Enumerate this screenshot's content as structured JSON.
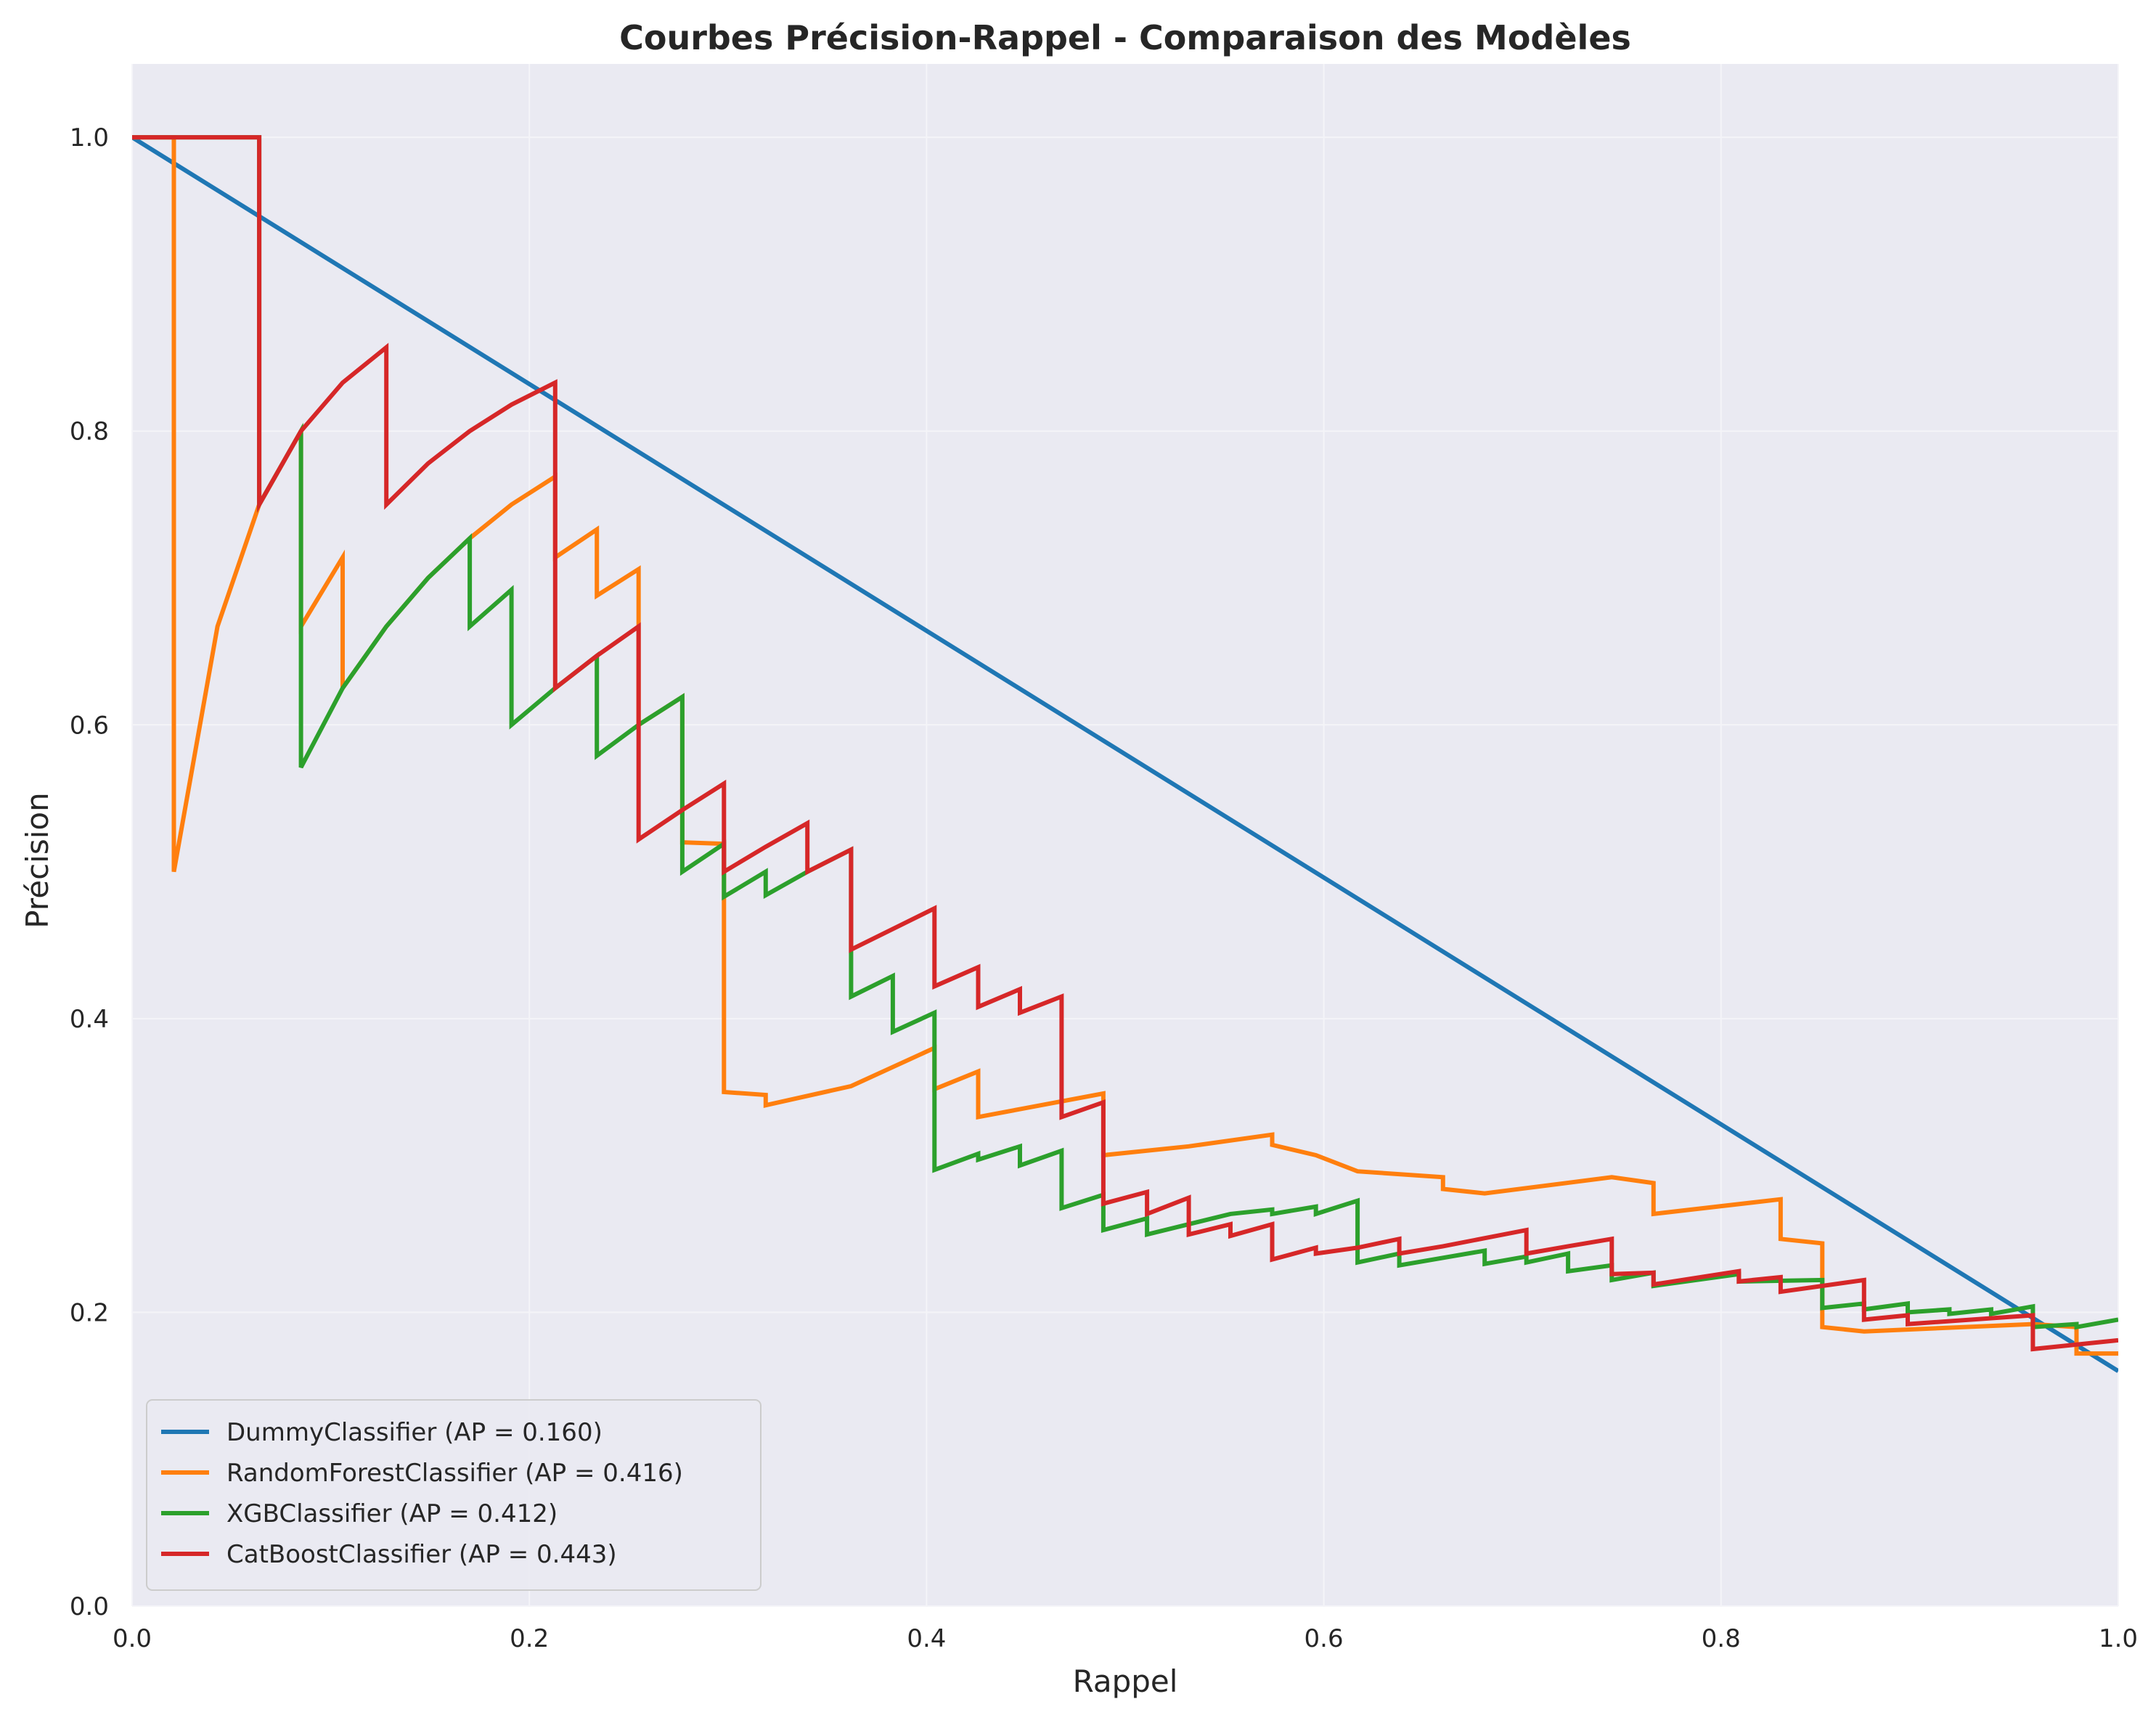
{
  "chart_data": {
    "type": "line",
    "title": "Courbes Précision-Rappel - Comparaison des Modèles",
    "xlabel": "Rappel",
    "ylabel": "Précision",
    "xlim": [
      0,
      1
    ],
    "ylim": [
      0,
      1.05
    ],
    "xticks": [
      0.0,
      0.2,
      0.4,
      0.6,
      0.8,
      1.0
    ],
    "xtick_labels": [
      "0.0",
      "0.2",
      "0.4",
      "0.6",
      "0.8",
      "1.0"
    ],
    "yticks": [
      0.0,
      0.2,
      0.4,
      0.6,
      0.8,
      1.0
    ],
    "ytick_labels": [
      "0.0",
      "0.2",
      "0.4",
      "0.6",
      "0.8",
      "1.0"
    ],
    "grid": true,
    "legend_position": "lower-left",
    "background": "#eaeaf2",
    "series": [
      {
        "name": "DummyClassifier (AP = 0.160)",
        "color": "#1f77b4",
        "points": [
          [
            0.0,
            1.0
          ],
          [
            1.0,
            0.16
          ]
        ]
      },
      {
        "name": "RandomForestClassifier (AP = 0.416)",
        "color": "#ff7f0e",
        "points": [
          [
            0.0,
            1.0
          ],
          [
            0.021,
            1.0
          ],
          [
            0.021,
            0.5
          ],
          [
            0.043,
            0.667
          ],
          [
            0.064,
            0.75
          ],
          [
            0.085,
            0.8
          ],
          [
            0.085,
            0.667
          ],
          [
            0.106,
            0.714
          ],
          [
            0.106,
            0.625
          ],
          [
            0.128,
            0.667
          ],
          [
            0.149,
            0.7
          ],
          [
            0.17,
            0.727
          ],
          [
            0.191,
            0.75
          ],
          [
            0.213,
            0.769
          ],
          [
            0.213,
            0.714
          ],
          [
            0.234,
            0.733
          ],
          [
            0.234,
            0.688
          ],
          [
            0.255,
            0.706
          ],
          [
            0.255,
            0.6
          ],
          [
            0.277,
            0.619
          ],
          [
            0.277,
            0.52
          ],
          [
            0.298,
            0.519
          ],
          [
            0.298,
            0.35
          ],
          [
            0.319,
            0.348
          ],
          [
            0.319,
            0.341
          ],
          [
            0.362,
            0.354
          ],
          [
            0.404,
            0.38
          ],
          [
            0.404,
            0.352
          ],
          [
            0.426,
            0.364
          ],
          [
            0.426,
            0.333
          ],
          [
            0.489,
            0.349
          ],
          [
            0.489,
            0.307
          ],
          [
            0.532,
            0.313
          ],
          [
            0.574,
            0.321
          ],
          [
            0.574,
            0.314
          ],
          [
            0.596,
            0.307
          ],
          [
            0.617,
            0.296
          ],
          [
            0.66,
            0.292
          ],
          [
            0.66,
            0.284
          ],
          [
            0.681,
            0.281
          ],
          [
            0.745,
            0.292
          ],
          [
            0.766,
            0.288
          ],
          [
            0.766,
            0.267
          ],
          [
            0.83,
            0.277
          ],
          [
            0.83,
            0.25
          ],
          [
            0.851,
            0.247
          ],
          [
            0.851,
            0.19
          ],
          [
            0.872,
            0.187
          ],
          [
            0.957,
            0.192
          ],
          [
            0.979,
            0.19
          ],
          [
            0.979,
            0.172
          ],
          [
            1.0,
            0.172
          ]
        ]
      },
      {
        "name": "XGBClassifier (AP = 0.412)",
        "color": "#2ca02c",
        "points": [
          [
            0.0,
            1.0
          ],
          [
            0.064,
            1.0
          ],
          [
            0.064,
            0.75
          ],
          [
            0.085,
            0.8
          ],
          [
            0.085,
            0.571
          ],
          [
            0.106,
            0.625
          ],
          [
            0.128,
            0.667
          ],
          [
            0.149,
            0.7
          ],
          [
            0.17,
            0.727
          ],
          [
            0.17,
            0.667
          ],
          [
            0.191,
            0.692
          ],
          [
            0.191,
            0.6
          ],
          [
            0.213,
            0.625
          ],
          [
            0.234,
            0.647
          ],
          [
            0.234,
            0.579
          ],
          [
            0.255,
            0.6
          ],
          [
            0.277,
            0.619
          ],
          [
            0.277,
            0.5
          ],
          [
            0.298,
            0.519
          ],
          [
            0.298,
            0.483
          ],
          [
            0.319,
            0.5
          ],
          [
            0.319,
            0.484
          ],
          [
            0.34,
            0.5
          ],
          [
            0.362,
            0.515
          ],
          [
            0.362,
            0.415
          ],
          [
            0.383,
            0.429
          ],
          [
            0.383,
            0.391
          ],
          [
            0.404,
            0.404
          ],
          [
            0.404,
            0.297
          ],
          [
            0.426,
            0.308
          ],
          [
            0.426,
            0.304
          ],
          [
            0.447,
            0.313
          ],
          [
            0.447,
            0.3
          ],
          [
            0.468,
            0.31
          ],
          [
            0.468,
            0.271
          ],
          [
            0.489,
            0.28
          ],
          [
            0.489,
            0.256
          ],
          [
            0.511,
            0.264
          ],
          [
            0.511,
            0.253
          ],
          [
            0.553,
            0.267
          ],
          [
            0.574,
            0.27
          ],
          [
            0.574,
            0.267
          ],
          [
            0.596,
            0.272
          ],
          [
            0.596,
            0.267
          ],
          [
            0.617,
            0.276
          ],
          [
            0.617,
            0.234
          ],
          [
            0.638,
            0.24
          ],
          [
            0.638,
            0.232
          ],
          [
            0.681,
            0.242
          ],
          [
            0.681,
            0.233
          ],
          [
            0.702,
            0.238
          ],
          [
            0.702,
            0.234
          ],
          [
            0.723,
            0.24
          ],
          [
            0.723,
            0.228
          ],
          [
            0.745,
            0.232
          ],
          [
            0.745,
            0.222
          ],
          [
            0.766,
            0.227
          ],
          [
            0.766,
            0.218
          ],
          [
            0.809,
            0.226
          ],
          [
            0.809,
            0.221
          ],
          [
            0.851,
            0.222
          ],
          [
            0.851,
            0.203
          ],
          [
            0.872,
            0.206
          ],
          [
            0.872,
            0.202
          ],
          [
            0.894,
            0.206
          ],
          [
            0.894,
            0.2
          ],
          [
            0.915,
            0.202
          ],
          [
            0.915,
            0.199
          ],
          [
            0.936,
            0.202
          ],
          [
            0.936,
            0.199
          ],
          [
            0.957,
            0.204
          ],
          [
            0.957,
            0.19
          ],
          [
            0.979,
            0.192
          ],
          [
            0.979,
            0.19
          ],
          [
            1.0,
            0.195
          ]
        ]
      },
      {
        "name": "CatBoostClassifier (AP = 0.443)",
        "color": "#d62728",
        "points": [
          [
            0.0,
            1.0
          ],
          [
            0.064,
            1.0
          ],
          [
            0.064,
            0.75
          ],
          [
            0.085,
            0.8
          ],
          [
            0.106,
            0.833
          ],
          [
            0.128,
            0.857
          ],
          [
            0.128,
            0.75
          ],
          [
            0.149,
            0.778
          ],
          [
            0.17,
            0.8
          ],
          [
            0.191,
            0.818
          ],
          [
            0.213,
            0.833
          ],
          [
            0.213,
            0.625
          ],
          [
            0.234,
            0.647
          ],
          [
            0.255,
            0.667
          ],
          [
            0.255,
            0.522
          ],
          [
            0.277,
            0.542
          ],
          [
            0.298,
            0.56
          ],
          [
            0.298,
            0.5
          ],
          [
            0.319,
            0.517
          ],
          [
            0.34,
            0.533
          ],
          [
            0.34,
            0.5
          ],
          [
            0.362,
            0.515
          ],
          [
            0.362,
            0.447
          ],
          [
            0.404,
            0.475
          ],
          [
            0.404,
            0.422
          ],
          [
            0.426,
            0.435
          ],
          [
            0.426,
            0.408
          ],
          [
            0.447,
            0.42
          ],
          [
            0.447,
            0.404
          ],
          [
            0.468,
            0.415
          ],
          [
            0.468,
            0.333
          ],
          [
            0.489,
            0.343
          ],
          [
            0.489,
            0.274
          ],
          [
            0.511,
            0.282
          ],
          [
            0.511,
            0.267
          ],
          [
            0.532,
            0.278
          ],
          [
            0.532,
            0.253
          ],
          [
            0.553,
            0.26
          ],
          [
            0.553,
            0.252
          ],
          [
            0.574,
            0.26
          ],
          [
            0.574,
            0.236
          ],
          [
            0.596,
            0.244
          ],
          [
            0.596,
            0.24
          ],
          [
            0.617,
            0.244
          ],
          [
            0.638,
            0.25
          ],
          [
            0.638,
            0.24
          ],
          [
            0.66,
            0.245
          ],
          [
            0.702,
            0.256
          ],
          [
            0.702,
            0.24
          ],
          [
            0.723,
            0.245
          ],
          [
            0.745,
            0.25
          ],
          [
            0.745,
            0.226
          ],
          [
            0.766,
            0.227
          ],
          [
            0.766,
            0.219
          ],
          [
            0.809,
            0.228
          ],
          [
            0.809,
            0.221
          ],
          [
            0.83,
            0.224
          ],
          [
            0.83,
            0.214
          ],
          [
            0.872,
            0.222
          ],
          [
            0.872,
            0.195
          ],
          [
            0.894,
            0.198
          ],
          [
            0.894,
            0.192
          ],
          [
            0.957,
            0.198
          ],
          [
            0.957,
            0.175
          ],
          [
            1.0,
            0.181
          ]
        ]
      }
    ]
  }
}
